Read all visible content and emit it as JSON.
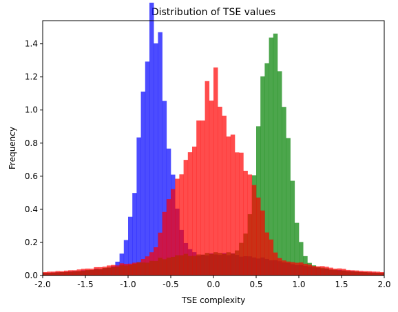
{
  "chart_data": {
    "type": "bar",
    "title": "Distribution of TSE values",
    "xlabel": "TSE complexity",
    "ylabel": "Frequency",
    "xlim": [
      -2.0,
      2.0
    ],
    "ylim": [
      0,
      1.54
    ],
    "grid": false,
    "bin_width": 0.05,
    "x_ticks": [
      -2.0,
      -1.5,
      -1.0,
      -0.5,
      0.0,
      0.5,
      1.0,
      1.5,
      2.0
    ],
    "x_tick_labels": [
      "-2.0",
      "-1.5",
      "-1.0",
      "-0.5",
      "0.0",
      "0.5",
      "1.0",
      "1.5",
      "2.0"
    ],
    "y_ticks": [
      0.0,
      0.2,
      0.4,
      0.6,
      0.8,
      1.0,
      1.2,
      1.4
    ],
    "y_tick_labels": [
      "0.0",
      "0.2",
      "0.4",
      "0.6",
      "0.8",
      "1.0",
      "1.2",
      "1.4"
    ],
    "series": [
      {
        "color": "#0000ff",
        "opacity": 0.7,
        "peaks": [
          {
            "center": -0.7,
            "sigma": 0.15,
            "height": 1.46
          }
        ],
        "floor": [
          {
            "center": 0.0,
            "sigma": 0.8,
            "height": 0.12
          }
        ]
      },
      {
        "color": "#008000",
        "opacity": 0.7,
        "peaks": [
          {
            "center": 0.7,
            "sigma": 0.15,
            "height": 1.44
          }
        ],
        "floor": [
          {
            "center": 0.0,
            "sigma": 0.8,
            "height": 0.12
          }
        ]
      },
      {
        "color": "#ff0000",
        "opacity": 0.7,
        "peaks": [
          {
            "center": 0.0,
            "sigma": 0.22,
            "height": 1.02
          },
          {
            "center": -0.45,
            "sigma": 0.13,
            "height": 0.35
          },
          {
            "center": 0.45,
            "sigma": 0.13,
            "height": 0.4
          }
        ],
        "floor": [
          {
            "center": 0.0,
            "sigma": 0.9,
            "height": 0.12
          }
        ]
      }
    ]
  }
}
